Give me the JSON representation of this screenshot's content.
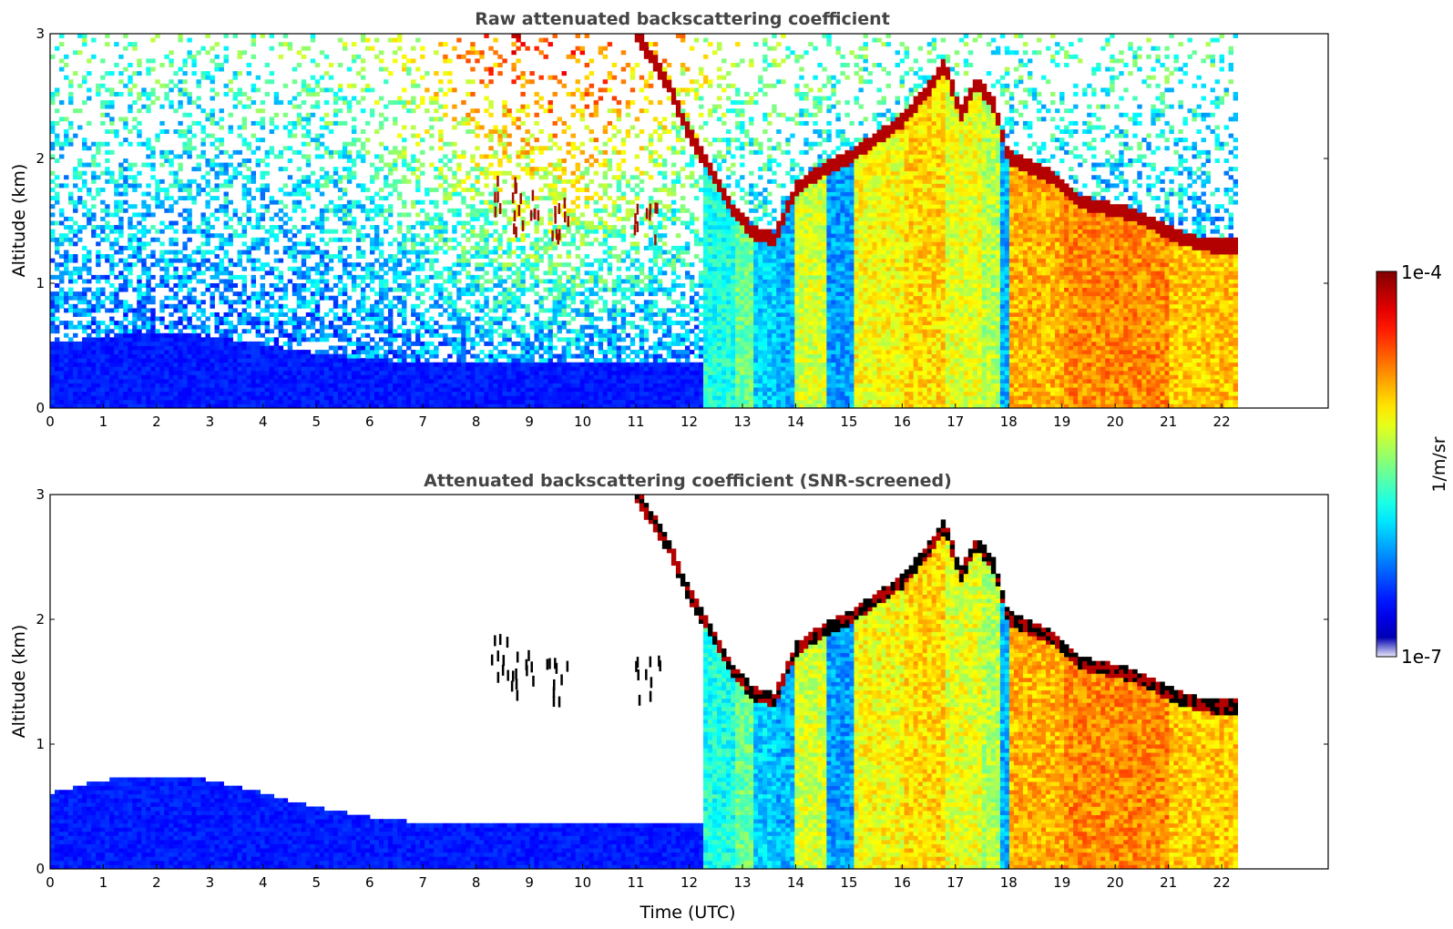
{
  "figure": {
    "xlabel": "Time (UTC)",
    "colorbar": {
      "label": "1/m/sr",
      "max_label": "1e-4",
      "min_label": "1e-7",
      "scale": "log",
      "range": [
        1e-07,
        0.0001
      ],
      "colormap": "jet"
    }
  },
  "chart_data": [
    {
      "type": "heatmap",
      "title": "Raw attenuated backscattering coefficient",
      "xlabel": "",
      "ylabel": "Altitude (km)",
      "xlim": [
        0,
        24
      ],
      "ylim": [
        0,
        3
      ],
      "data_end_hour": 22.3,
      "x_ticks": [
        "0",
        "1",
        "2",
        "3",
        "4",
        "5",
        "6",
        "7",
        "8",
        "9",
        "10",
        "11",
        "12",
        "13",
        "14",
        "15",
        "16",
        "17",
        "18",
        "19",
        "20",
        "21",
        "22"
      ],
      "y_ticks": [
        "0",
        "1",
        "2",
        "3"
      ],
      "screened": false,
      "cloud_layer": [
        [
          11.0,
          3.0
        ],
        [
          11.6,
          2.6
        ],
        [
          12.0,
          2.2
        ],
        [
          12.4,
          1.9
        ],
        [
          12.8,
          1.6
        ],
        [
          13.2,
          1.4
        ],
        [
          13.6,
          1.35
        ],
        [
          14.0,
          1.75
        ],
        [
          14.5,
          1.9
        ],
        [
          15.0,
          2.0
        ],
        [
          15.5,
          2.15
        ],
        [
          16.0,
          2.3
        ],
        [
          16.5,
          2.55
        ],
        [
          16.8,
          2.75
        ],
        [
          17.1,
          2.35
        ],
        [
          17.4,
          2.6
        ],
        [
          17.7,
          2.45
        ],
        [
          18.0,
          2.0
        ],
        [
          18.3,
          1.95
        ],
        [
          18.8,
          1.85
        ],
        [
          19.3,
          1.65
        ],
        [
          19.8,
          1.6
        ],
        [
          20.3,
          1.55
        ],
        [
          20.8,
          1.45
        ],
        [
          21.3,
          1.35
        ],
        [
          21.8,
          1.3
        ],
        [
          22.3,
          1.3
        ]
      ],
      "sparse_cloud_patches": [
        [
          8.5,
          1.75
        ],
        [
          8.9,
          1.6
        ],
        [
          9.5,
          1.55
        ],
        [
          11.2,
          1.55
        ]
      ]
    },
    {
      "type": "heatmap",
      "title": "Attenuated backscattering coefficient (SNR-screened)",
      "xlabel": "Time (UTC)",
      "ylabel": "Altitude (km)",
      "xlim": [
        0,
        24
      ],
      "ylim": [
        0,
        3
      ],
      "data_end_hour": 22.3,
      "x_ticks": [
        "0",
        "1",
        "2",
        "3",
        "4",
        "5",
        "6",
        "7",
        "8",
        "9",
        "10",
        "11",
        "12",
        "13",
        "14",
        "15",
        "16",
        "17",
        "18",
        "19",
        "20",
        "21",
        "22"
      ],
      "y_ticks": [
        "0",
        "1",
        "2",
        "3"
      ],
      "screened": true,
      "cloud_layer": [
        [
          11.0,
          3.0
        ],
        [
          11.6,
          2.6
        ],
        [
          12.0,
          2.2
        ],
        [
          12.4,
          1.9
        ],
        [
          12.8,
          1.6
        ],
        [
          13.2,
          1.4
        ],
        [
          13.6,
          1.35
        ],
        [
          14.0,
          1.75
        ],
        [
          14.5,
          1.9
        ],
        [
          15.0,
          2.0
        ],
        [
          15.5,
          2.15
        ],
        [
          16.0,
          2.3
        ],
        [
          16.5,
          2.55
        ],
        [
          16.8,
          2.75
        ],
        [
          17.1,
          2.35
        ],
        [
          17.4,
          2.6
        ],
        [
          17.7,
          2.45
        ],
        [
          18.0,
          2.0
        ],
        [
          18.3,
          1.95
        ],
        [
          18.8,
          1.85
        ],
        [
          19.3,
          1.65
        ],
        [
          19.8,
          1.6
        ],
        [
          20.3,
          1.55
        ],
        [
          20.8,
          1.45
        ],
        [
          21.3,
          1.35
        ],
        [
          21.8,
          1.3
        ],
        [
          22.3,
          1.3
        ]
      ],
      "sparse_cloud_patches": [
        [
          8.5,
          1.75
        ],
        [
          8.9,
          1.6
        ],
        [
          9.5,
          1.55
        ],
        [
          11.2,
          1.55
        ]
      ]
    }
  ]
}
